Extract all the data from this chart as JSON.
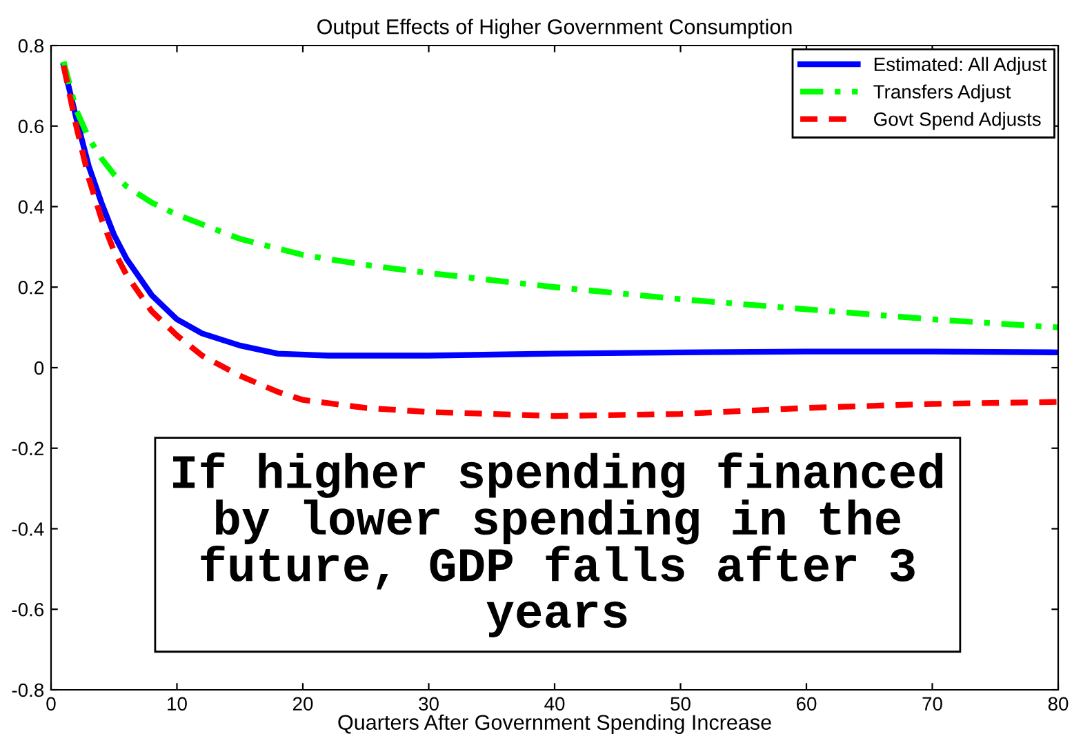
{
  "chart_data": {
    "type": "line",
    "title": "Output Effects of Higher Government Consumption",
    "xlabel": "Quarters After Government Spending Increase",
    "xlim": [
      0,
      80
    ],
    "xticks": [
      0,
      10,
      20,
      30,
      40,
      50,
      60,
      70,
      80
    ],
    "ylim": [
      -0.8,
      0.8
    ],
    "yticks": [
      -0.8,
      -0.6,
      -0.4,
      -0.2,
      0,
      0.2,
      0.4,
      0.6,
      0.8
    ],
    "grid": false,
    "legend": "top right",
    "marker": "none",
    "annotations": [
      "If higher spending financed by lower spending in the future, GDP falls after 3 years"
    ],
    "series": [
      {
        "name": "Estimated: All Adjust",
        "color": "#0000ff",
        "line_style": "solid",
        "x": [
          1,
          2,
          3,
          4,
          5,
          6,
          8,
          10,
          12,
          15,
          18,
          22,
          30,
          40,
          50,
          60,
          70,
          80
        ],
        "values": [
          0.75,
          0.62,
          0.5,
          0.41,
          0.33,
          0.27,
          0.18,
          0.12,
          0.085,
          0.055,
          0.035,
          0.03,
          0.03,
          0.035,
          0.038,
          0.04,
          0.04,
          0.038
        ]
      },
      {
        "name": "Transfers Adjust",
        "color": "#00ff00",
        "line_style": "dashdot",
        "x": [
          1,
          2,
          3,
          4,
          5,
          6,
          8,
          10,
          15,
          20,
          25,
          30,
          40,
          50,
          60,
          70,
          80
        ],
        "values": [
          0.76,
          0.64,
          0.57,
          0.52,
          0.48,
          0.45,
          0.41,
          0.38,
          0.32,
          0.28,
          0.255,
          0.235,
          0.2,
          0.17,
          0.145,
          0.12,
          0.1
        ]
      },
      {
        "name": "Govt Spend Adjusts",
        "color": "#ff0000",
        "line_style": "dashed",
        "x": [
          1,
          2,
          3,
          4,
          5,
          6,
          8,
          10,
          12,
          15,
          18,
          20,
          25,
          30,
          40,
          50,
          60,
          70,
          80
        ],
        "values": [
          0.75,
          0.6,
          0.47,
          0.37,
          0.29,
          0.23,
          0.14,
          0.08,
          0.03,
          -0.02,
          -0.06,
          -0.08,
          -0.1,
          -0.11,
          -0.12,
          -0.115,
          -0.1,
          -0.09,
          -0.085
        ]
      }
    ]
  }
}
